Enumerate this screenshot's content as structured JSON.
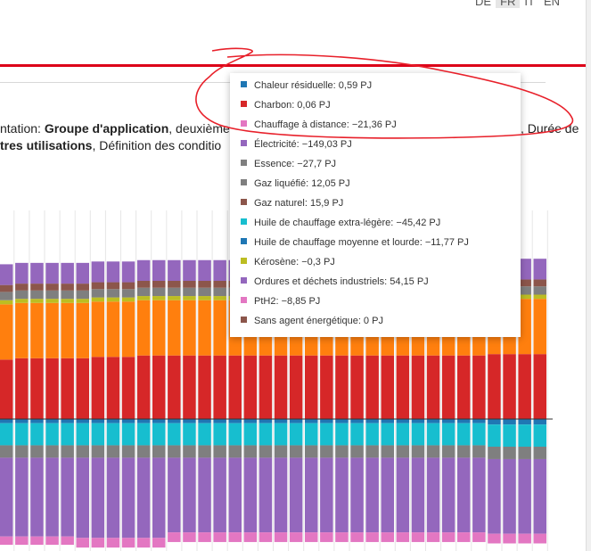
{
  "lang_switch": [
    "DE",
    "FR",
    "IT",
    "EN"
  ],
  "active_lang": "FR",
  "text": {
    "line1_a": "ntation: ",
    "line1_b": "Groupe d'application",
    "line1_c": ", deuxième",
    "line1_d": ", Durée de",
    "line2_a": "tres utilisations",
    "line2_b": ", Définition des conditio"
  },
  "tooltip": [
    {
      "label": "Chaleur résiduelle: 0,59 PJ",
      "color": "#1f77b4"
    },
    {
      "label": "Charbon: 0,06 PJ",
      "color": "#d62728"
    },
    {
      "label": "Chauffage à distance: −21,36 PJ",
      "color": "#e377c2"
    },
    {
      "label": "Électricité: −149,03 PJ",
      "color": "#9467bd"
    },
    {
      "label": "Essence: −27,7 PJ",
      "color": "#7f7f7f"
    },
    {
      "label": "Gaz liquéfié: 12,05 PJ",
      "color": "#7f7f7f"
    },
    {
      "label": "Gaz naturel: 15,9 PJ",
      "color": "#8c564b"
    },
    {
      "label": "Huile de chauffage extra-légère: −45,42 PJ",
      "color": "#17becf"
    },
    {
      "label": "Huile de chauffage moyenne et lourde: −11,77 PJ",
      "color": "#1f77b4"
    },
    {
      "label": "Kérosène: −0,3 PJ",
      "color": "#bcbd22"
    },
    {
      "label": "Ordures et déchets industriels: 54,15 PJ",
      "color": "#9467bd"
    },
    {
      "label": "PtH2: −8,85 PJ",
      "color": "#e377c2"
    },
    {
      "label": "Sans agent énergétique: 0 PJ",
      "color": "#8c564b"
    }
  ],
  "chart_data": {
    "type": "bar",
    "stacked": true,
    "n_bars": 36,
    "series": [
      {
        "color": "#d62728",
        "values": [
          43,
          44,
          44,
          44,
          44,
          44,
          45,
          45,
          45,
          46,
          46,
          46,
          46,
          46,
          46,
          46,
          46,
          46,
          46,
          46,
          46,
          46,
          46,
          46,
          46,
          46,
          46,
          46,
          46,
          46,
          46,
          46,
          47,
          47,
          47,
          47
        ]
      },
      {
        "color": "#ff7f0e",
        "values": [
          40,
          40,
          40,
          40,
          40,
          40,
          40,
          40,
          40,
          40,
          40,
          40,
          40,
          40,
          40,
          40,
          40,
          40,
          40,
          40,
          40,
          40,
          40,
          40,
          40,
          40,
          40,
          40,
          40,
          40,
          40,
          40,
          40,
          40,
          40,
          40
        ]
      },
      {
        "color": "#bcbd22",
        "values": [
          3,
          3,
          3,
          3,
          3,
          3,
          3,
          3,
          3,
          3,
          3,
          3,
          3,
          3,
          3,
          3,
          3,
          3,
          3,
          3,
          3,
          3,
          3,
          3,
          3,
          3,
          3,
          3,
          3,
          3,
          3,
          3,
          3,
          3,
          3,
          3
        ]
      },
      {
        "color": "#7f7f7f",
        "values": [
          6,
          6,
          6,
          6,
          6,
          6,
          6,
          6,
          6,
          6,
          6,
          6,
          6,
          6,
          6,
          6,
          6,
          6,
          6,
          6,
          6,
          6,
          6,
          6,
          6,
          6,
          6,
          6,
          6,
          6,
          6,
          6,
          6,
          6,
          6,
          6
        ]
      },
      {
        "color": "#8c564b",
        "values": [
          5,
          5,
          5,
          5,
          5,
          5,
          5,
          5,
          5,
          5,
          5,
          5,
          5,
          5,
          5,
          5,
          5,
          5,
          5,
          5,
          5,
          5,
          5,
          5,
          5,
          5,
          5,
          5,
          5,
          5,
          5,
          5,
          5,
          5,
          5,
          5
        ]
      },
      {
        "color": "#9467bd",
        "values": [
          15,
          15,
          15,
          15,
          15,
          15,
          15,
          15,
          15,
          15,
          15,
          15,
          15,
          15,
          15,
          15,
          15,
          15,
          15,
          15,
          15,
          15,
          15,
          15,
          15,
          15,
          15,
          15,
          15,
          15,
          15,
          15,
          15,
          15,
          15,
          15
        ]
      },
      {
        "color": "#1f77b4",
        "values": [
          -3,
          -3,
          -3,
          -3,
          -3,
          -3,
          -3,
          -3,
          -3,
          -3,
          -3,
          -3,
          -3,
          -3,
          -3,
          -3,
          -3,
          -3,
          -3,
          -3,
          -3,
          -3,
          -3,
          -3,
          -3,
          -3,
          -3,
          -3,
          -3,
          -3,
          -3,
          -3,
          -4,
          -4,
          -4,
          -4
        ]
      },
      {
        "color": "#17becf",
        "values": [
          -16,
          -16,
          -16,
          -16,
          -16,
          -16,
          -16,
          -16,
          -16,
          -16,
          -16,
          -16,
          -16,
          -16,
          -16,
          -16,
          -16,
          -16,
          -16,
          -16,
          -16,
          -16,
          -16,
          -16,
          -16,
          -16,
          -16,
          -16,
          -16,
          -16,
          -16,
          -16,
          -16,
          -16,
          -16,
          -16
        ]
      },
      {
        "color": "#7f7f7f",
        "values": [
          -9,
          -9,
          -9,
          -9,
          -9,
          -9,
          -9,
          -9,
          -9,
          -9,
          -9,
          -9,
          -9,
          -9,
          -9,
          -9,
          -9,
          -9,
          -9,
          -9,
          -9,
          -9,
          -9,
          -9,
          -9,
          -9,
          -9,
          -9,
          -9,
          -9,
          -9,
          -9,
          -9,
          -9,
          -9,
          -9
        ]
      },
      {
        "color": "#9467bd",
        "values": [
          -57,
          -57,
          -57,
          -57,
          -57,
          -58,
          -58,
          -58,
          -58,
          -58,
          -58,
          -54,
          -54,
          -54,
          -54,
          -54,
          -54,
          -54,
          -54,
          -54,
          -54,
          -54,
          -54,
          -54,
          -54,
          -54,
          -54,
          -54,
          -54,
          -54,
          -54,
          -54,
          -54,
          -54,
          -54,
          -54
        ]
      },
      {
        "color": "#e377c2",
        "values": [
          -6,
          -6,
          -6,
          -6,
          -6,
          -7,
          -7,
          -7,
          -7,
          -7,
          -7,
          -7,
          -7,
          -7,
          -7,
          -7,
          -7,
          -7,
          -7,
          -7,
          -7,
          -7,
          -7,
          -7,
          -7,
          -7,
          -7,
          -7,
          -7,
          -7,
          -7,
          -7,
          -7,
          -7,
          -7,
          -7
        ]
      }
    ]
  }
}
